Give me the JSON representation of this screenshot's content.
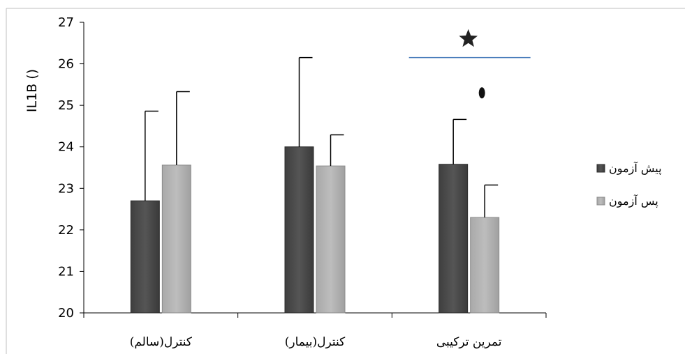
{
  "chart_data": {
    "type": "bar",
    "ylabel": "IL1B ()",
    "ylim": [
      20,
      27
    ],
    "yticks": [
      20,
      21,
      22,
      23,
      24,
      25,
      26,
      27
    ],
    "categories": [
      "کنترل(سالم)",
      "کنترل(بیمار)",
      "تمرین ترکیبی"
    ],
    "series": [
      {
        "name": "پیش آزمون",
        "values": [
          22.7,
          24.0,
          23.58
        ],
        "error": [
          2.16,
          2.15,
          1.08
        ],
        "color": "#555555"
      },
      {
        "name": "پس آزمون",
        "values": [
          23.56,
          23.54,
          22.3
        ],
        "error": [
          1.77,
          0.75,
          0.78
        ],
        "color": "#bdbdbd"
      }
    ],
    "annotations": [
      {
        "type": "significance-line",
        "category": "تمرین ترکیبی",
        "y": 26.15,
        "color": "#4a7ebb"
      },
      {
        "type": "star-marker",
        "category": "تمرین ترکیبی",
        "y": 26.6
      },
      {
        "type": "circle-marker",
        "category": "تمرین ترکیبی",
        "series": "پس آزمون",
        "y": 25.3
      }
    ],
    "legend": "right",
    "grid": false
  }
}
